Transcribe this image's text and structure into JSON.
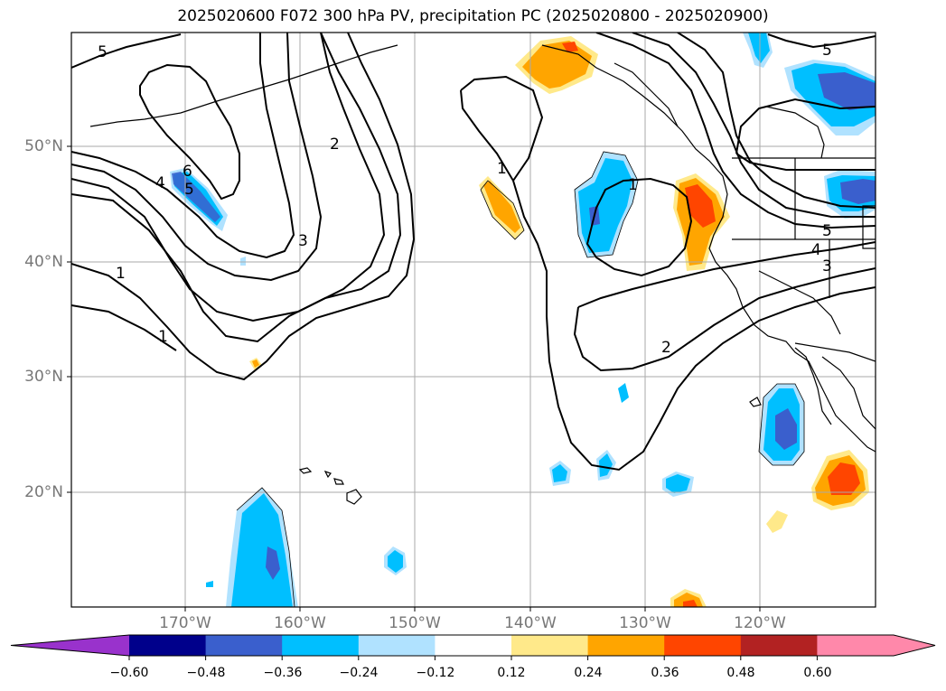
{
  "title": "2025020600 F072 300 hPa PV, precipitation PC (2025020800 - 2025020900)",
  "latitude_labels": [
    "50°N",
    "40°N",
    "30°N",
    "20°N"
  ],
  "longitude_labels": [
    "170°W",
    "160°W",
    "150°W",
    "140°W",
    "130°W",
    "120°W"
  ],
  "colorbar": {
    "tick_labels": [
      "−0.60",
      "−0.48",
      "−0.36",
      "−0.24",
      "−0.12",
      "0.12",
      "0.24",
      "0.36",
      "0.48",
      "0.60"
    ],
    "colors": [
      "#9932cc",
      "#00008b",
      "#3a5fcd",
      "#00bfff",
      "#b0e2ff",
      "#ffffff",
      "#ffe98a",
      "#ffa500",
      "#ff4500",
      "#b22222",
      "#ff88aa",
      "#ff88aa"
    ]
  },
  "contour_labels": [
    "5",
    "6",
    "5",
    "4",
    "1",
    "1",
    "3",
    "2",
    "1",
    "1",
    "2",
    "5",
    "5",
    "4",
    "3"
  ]
}
